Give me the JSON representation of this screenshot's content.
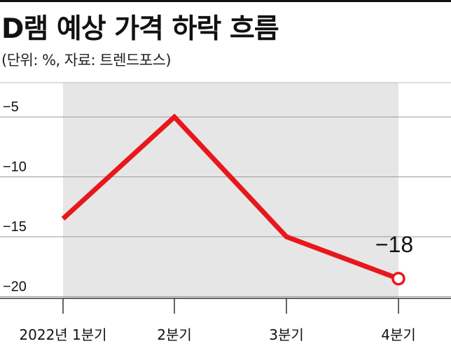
{
  "title": "D램 예상 가격 하락 흐름",
  "subtitle": "(단위: %, 자료: 트렌드포스)",
  "chart_data": {
    "type": "line",
    "title": "D램 예상 가격 하락 흐름",
    "xlabel": "",
    "ylabel": "",
    "categories": [
      "2022년 1분기",
      "2분기",
      "3분기",
      "4분기"
    ],
    "values": [
      -13.5,
      -5,
      -15,
      -18.5
    ],
    "y_ticks": [
      -5,
      -10,
      -15,
      -20
    ],
    "y_tick_labels": [
      "−5",
      "−10",
      "−15",
      "−20"
    ],
    "ylim": [
      -21.5,
      -2
    ],
    "data_labels": [
      {
        "index": 3,
        "text": "−18"
      }
    ],
    "line_color": "#e8171c",
    "shade_color": "#e6e6e6",
    "grid": true,
    "legend": "none"
  }
}
